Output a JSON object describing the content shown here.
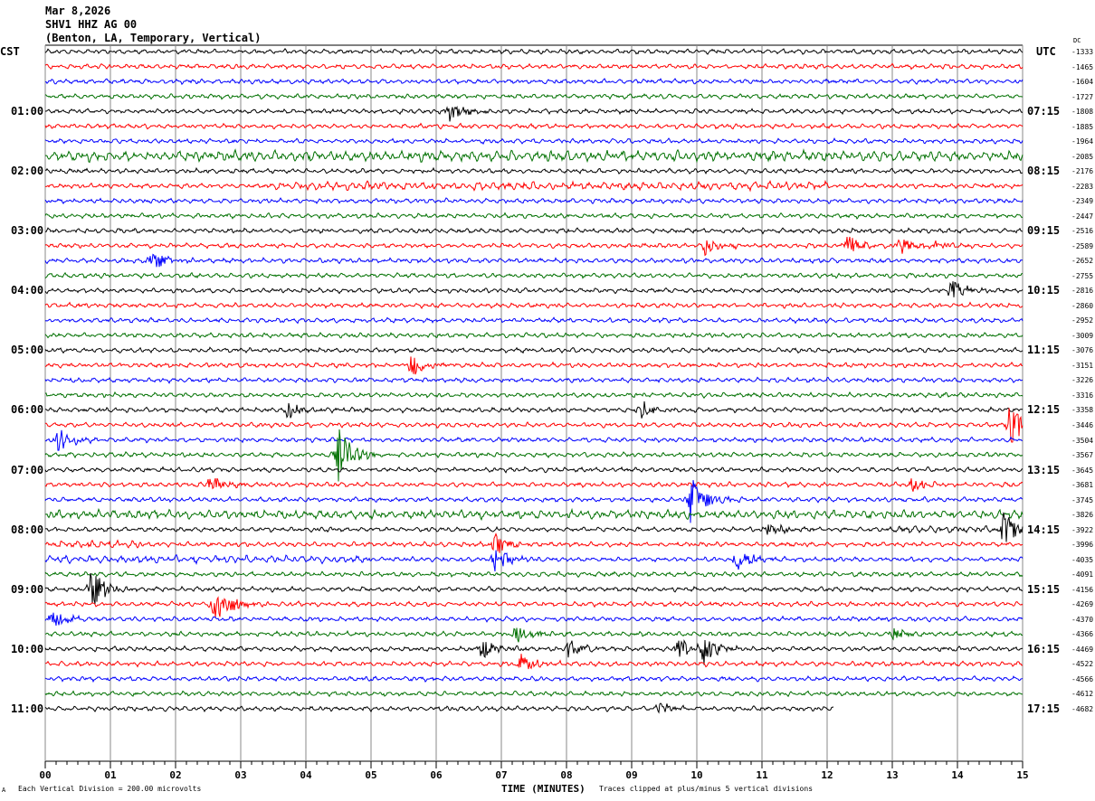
{
  "header": {
    "date": "Mar 8,2026",
    "station": "SHV1 HHZ AG 00",
    "location": "(Benton, LA, Temporary, Vertical)"
  },
  "left_zone": "CST",
  "right_zone": "UTC",
  "dc_label": "DC",
  "footer": {
    "scale": "Each Vertical Division =  200.00 microvolts",
    "xlabel": "TIME (MINUTES)",
    "clip_note": "Traces clipped at plus/minus 5 vertical divisions",
    "corner_mark": "A"
  },
  "chart_data": {
    "type": "line",
    "subtype": "helicorder",
    "xlabel": "TIME (MINUTES)",
    "xlim": [
      0,
      15
    ],
    "x_ticks": [
      "00",
      "01",
      "02",
      "03",
      "04",
      "05",
      "06",
      "07",
      "08",
      "09",
      "10",
      "11",
      "12",
      "13",
      "14",
      "15"
    ],
    "grid": "vertical lines every minute",
    "trace_colors": [
      "#000000",
      "#ff0000",
      "#0000ff",
      "#007000"
    ],
    "left_hour_labels": [
      "",
      "01:00",
      "02:00",
      "03:00",
      "04:00",
      "05:00",
      "06:00",
      "07:00",
      "08:00",
      "09:00",
      "10:00",
      "11:00"
    ],
    "right_hour_labels": [
      "",
      "07:15",
      "08:15",
      "09:15",
      "10:15",
      "11:15",
      "12:15",
      "13:15",
      "14:15",
      "15:15",
      "16:15",
      "17:15"
    ],
    "row_dc_offsets": [
      -1333,
      -1465,
      -1604,
      -1727,
      -1808,
      -1885,
      -1964,
      -2085,
      -2176,
      -2283,
      -2349,
      -2447,
      -2516,
      -2589,
      -2652,
      -2755,
      -2816,
      -2860,
      -2952,
      -3009,
      -3076,
      -3151,
      -3226,
      -3316,
      -3358,
      -3446,
      -3504,
      -3567,
      -3645,
      -3681,
      -3745,
      -3826,
      -3922,
      -3996,
      -4035,
      -4091,
      -4156,
      -4269,
      -4370,
      -4366,
      -4469,
      -4522,
      -4566,
      -4612,
      -4682
    ],
    "last_row_end_minute": 12.1,
    "noisy_rows": [
      {
        "row": 7,
        "level": 2.2
      },
      {
        "row": 9,
        "level": 1.8,
        "from": 3.5,
        "to": 12
      },
      {
        "row": 31,
        "level": 1.8
      },
      {
        "row": 32,
        "level": 1.5,
        "from": 13,
        "to": 15
      },
      {
        "row": 33,
        "level": 1.6,
        "from": 0,
        "to": 1.5
      },
      {
        "row": 34,
        "level": 1.6,
        "from": 0,
        "to": 5
      }
    ],
    "events": [
      {
        "row": 4,
        "minute": 6.2,
        "amp": 2.5
      },
      {
        "row": 13,
        "minute": 10.1,
        "amp": 2
      },
      {
        "row": 13,
        "minute": 12.3,
        "amp": 2
      },
      {
        "row": 13,
        "minute": 13.1,
        "amp": 1.6
      },
      {
        "row": 13,
        "minute": 13.6,
        "amp": 1.5
      },
      {
        "row": 14,
        "minute": 1.6,
        "amp": 2.5
      },
      {
        "row": 16,
        "minute": 13.9,
        "amp": 2
      },
      {
        "row": 21,
        "minute": 5.6,
        "amp": 2.5
      },
      {
        "row": 24,
        "minute": 3.7,
        "amp": 2
      },
      {
        "row": 24,
        "minute": 9.1,
        "amp": 2
      },
      {
        "row": 25,
        "minute": 14.8,
        "amp": 4
      },
      {
        "row": 26,
        "minute": 0.2,
        "amp": 2.5
      },
      {
        "row": 27,
        "minute": 4.5,
        "amp": 5
      },
      {
        "row": 29,
        "minute": 2.5,
        "amp": 2
      },
      {
        "row": 29,
        "minute": 13.3,
        "amp": 1.5
      },
      {
        "row": 30,
        "minute": 9.9,
        "amp": 5
      },
      {
        "row": 32,
        "minute": 14.7,
        "amp": 3.5
      },
      {
        "row": 32,
        "minute": 11.1,
        "amp": 1.5
      },
      {
        "row": 33,
        "minute": 6.9,
        "amp": 2
      },
      {
        "row": 34,
        "minute": 6.9,
        "amp": 2.5
      },
      {
        "row": 34,
        "minute": 10.6,
        "amp": 2.5
      },
      {
        "row": 36,
        "minute": 0.7,
        "amp": 4
      },
      {
        "row": 37,
        "minute": 2.6,
        "amp": 5
      },
      {
        "row": 38,
        "minute": 0.1,
        "amp": 2
      },
      {
        "row": 39,
        "minute": 7.2,
        "amp": 2
      },
      {
        "row": 39,
        "minute": 13.0,
        "amp": 1.4
      },
      {
        "row": 40,
        "minute": 6.7,
        "amp": 2.2
      },
      {
        "row": 40,
        "minute": 8.0,
        "amp": 2
      },
      {
        "row": 40,
        "minute": 9.7,
        "amp": 2.5
      },
      {
        "row": 40,
        "minute": 10.1,
        "amp": 3
      },
      {
        "row": 41,
        "minute": 7.3,
        "amp": 2
      },
      {
        "row": 44,
        "minute": 9.4,
        "amp": 1.5
      }
    ]
  }
}
